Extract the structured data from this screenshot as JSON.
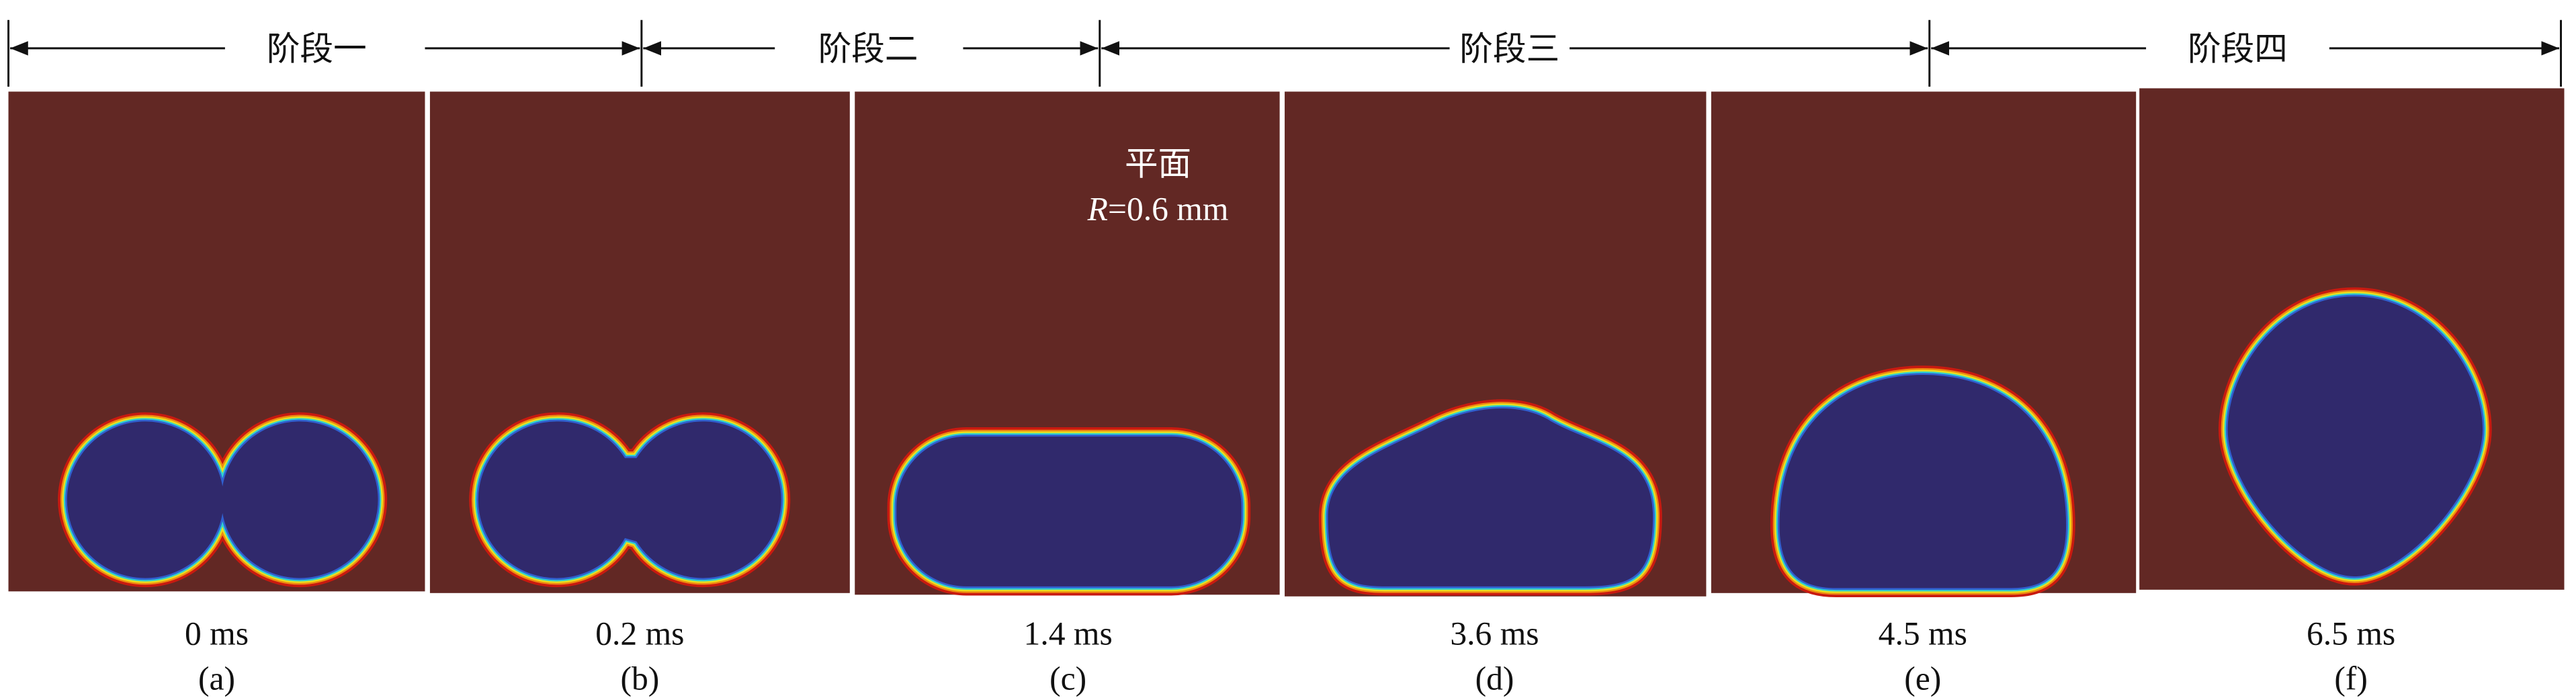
{
  "stages": [
    "阶段一",
    "阶段二",
    "阶段三",
    "阶段四"
  ],
  "panels": [
    {
      "time": "0 ms",
      "label": "(a)"
    },
    {
      "time": "0.2 ms",
      "label": "(b)"
    },
    {
      "time": "1.4 ms",
      "label": "(c)"
    },
    {
      "time": "3.6 ms",
      "label": "(d)"
    },
    {
      "time": "4.5 ms",
      "label": "(e)"
    },
    {
      "time": "6.5 ms",
      "label": "(f)"
    }
  ],
  "annotation": {
    "surface": "平面",
    "radius_symbol": "R",
    "radius_value": "=0.6 mm"
  }
}
